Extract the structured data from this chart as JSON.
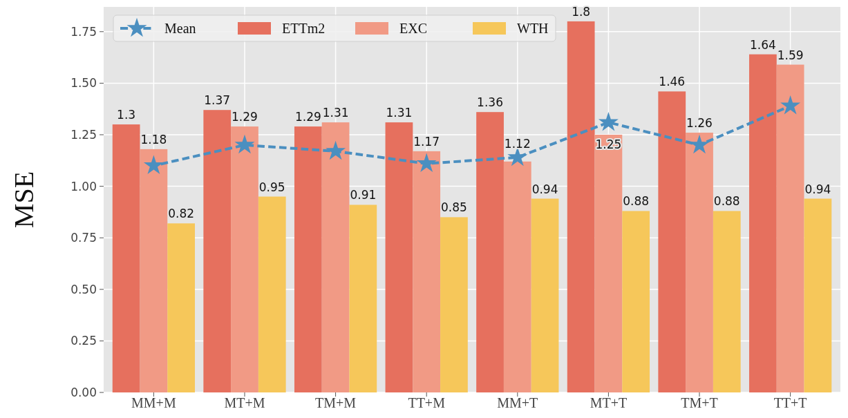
{
  "chart_data": {
    "type": "bar",
    "ylabel": "MSE",
    "categories": [
      "MM+M",
      "MT+M",
      "TM+M",
      "TT+M",
      "MM+T",
      "MT+T",
      "TM+T",
      "TT+T"
    ],
    "ylim": [
      0,
      1.87
    ],
    "yticks": [
      {
        "value": 0,
        "label": "0.00"
      },
      {
        "value": 0.25,
        "label": "0.25"
      },
      {
        "value": 0.5,
        "label": "0.50"
      },
      {
        "value": 0.75,
        "label": "0.75"
      },
      {
        "value": 1,
        "label": "1.00"
      },
      {
        "value": 1.25,
        "label": "1.25"
      },
      {
        "value": 1.5,
        "label": "1.50"
      },
      {
        "value": 1.75,
        "label": "1.75"
      }
    ],
    "grid": true,
    "legend": "top left",
    "series": [
      {
        "name": "Mean",
        "type": "line",
        "color": "#4b8fc0",
        "marker": "star",
        "line_style": "dashed",
        "values": [
          1.1,
          1.2,
          1.17,
          1.11,
          1.14,
          1.31,
          1.2,
          1.39
        ]
      },
      {
        "name": "ETTm2",
        "color": "#e6705e",
        "values": [
          1.3,
          1.37,
          1.29,
          1.31,
          1.36,
          1.8,
          1.46,
          1.64
        ],
        "value_labels": [
          "1.3",
          "1.37",
          "1.29",
          "1.31",
          "1.36",
          "1.8",
          "1.46",
          "1.64"
        ]
      },
      {
        "name": "EXC",
        "color": "#f19a85",
        "values": [
          1.18,
          1.29,
          1.31,
          1.17,
          1.12,
          1.25,
          1.26,
          1.59
        ],
        "value_labels": [
          "1.18",
          "1.29",
          "1.31",
          "1.17",
          "1.12",
          "1.25",
          "1.26",
          "1.59"
        ]
      },
      {
        "name": "WTH",
        "color": "#f6c75a",
        "values": [
          0.82,
          0.95,
          0.91,
          0.85,
          0.94,
          0.88,
          0.88,
          0.94
        ],
        "value_labels": [
          "0.82",
          "0.95",
          "0.91",
          "0.85",
          "0.94",
          "0.88",
          "0.88",
          "0.94"
        ]
      }
    ]
  }
}
